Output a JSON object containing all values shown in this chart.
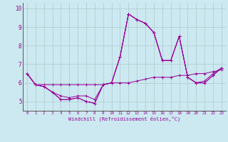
{
  "xlabel": "Windchill (Refroidissement éolien,°C)",
  "ylabel": "",
  "background_color": "#cce8f0",
  "line_color": "#990099",
  "xlim": [
    -0.5,
    23.5
  ],
  "ylim": [
    4.5,
    10.3
  ],
  "xticks": [
    0,
    1,
    2,
    3,
    4,
    5,
    6,
    7,
    8,
    9,
    10,
    11,
    12,
    13,
    14,
    15,
    16,
    17,
    18,
    19,
    20,
    21,
    22,
    23
  ],
  "yticks": [
    5,
    6,
    7,
    8,
    9,
    10
  ],
  "grid_color": "#aacccc",
  "series": [
    [
      6.5,
      5.9,
      5.8,
      5.5,
      5.1,
      5.1,
      5.2,
      5.0,
      4.9,
      5.9,
      6.0,
      7.4,
      9.7,
      9.4,
      9.2,
      8.7,
      7.2,
      7.2,
      8.5,
      6.3,
      6.0,
      6.0,
      6.4,
      6.8
    ],
    [
      6.5,
      5.9,
      5.8,
      5.5,
      5.1,
      5.1,
      5.2,
      5.0,
      4.9,
      5.9,
      6.0,
      7.4,
      9.7,
      9.4,
      9.2,
      8.7,
      7.2,
      7.2,
      8.5,
      6.3,
      6.0,
      6.0,
      6.4,
      6.8
    ],
    [
      6.5,
      5.9,
      5.8,
      5.5,
      5.3,
      5.2,
      5.3,
      5.3,
      5.1,
      5.9,
      6.0,
      7.4,
      9.7,
      9.4,
      9.2,
      8.7,
      7.2,
      7.2,
      8.5,
      6.3,
      6.0,
      6.1,
      6.5,
      6.8
    ],
    [
      6.5,
      5.9,
      5.9,
      5.9,
      5.9,
      5.9,
      5.9,
      5.9,
      5.9,
      5.9,
      6.0,
      6.0,
      6.0,
      6.1,
      6.2,
      6.3,
      6.3,
      6.3,
      6.4,
      6.4,
      6.5,
      6.5,
      6.6,
      6.7
    ]
  ]
}
